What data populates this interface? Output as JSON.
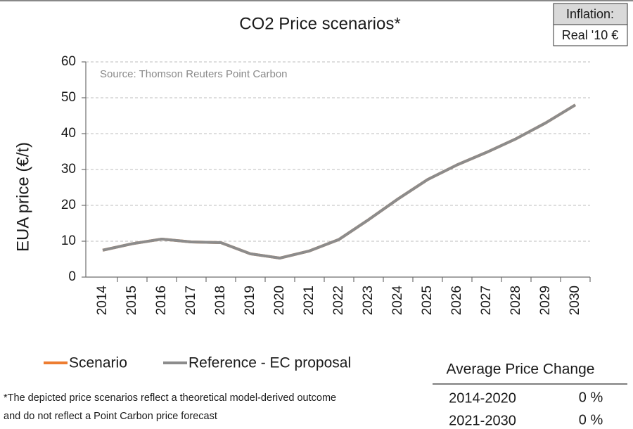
{
  "chart_data": {
    "type": "line",
    "title": "CO2 Price scenarios*",
    "annotation": "Source: Thomson Reuters Point Carbon",
    "y_label": "EUA price (€/t)",
    "categories": [
      "2014",
      "2015",
      "2016",
      "2017",
      "2018",
      "2019",
      "2020",
      "2021",
      "2022",
      "2023",
      "2024",
      "2025",
      "2026",
      "2027",
      "2028",
      "2029",
      "2030"
    ],
    "series": [
      {
        "name": "Scenario",
        "color": "#ed7d31",
        "values": [
          7.5,
          9.3,
          10.6,
          9.8,
          9.6,
          6.5,
          5.3,
          7.3,
          10.5,
          16,
          21.8,
          27.2,
          31.3,
          34.8,
          38.6,
          43,
          48
        ]
      },
      {
        "name": "Reference - EC proposal",
        "color": "#8c8c8c",
        "values": [
          7.5,
          9.3,
          10.6,
          9.8,
          9.6,
          6.5,
          5.3,
          7.3,
          10.5,
          16,
          21.8,
          27.2,
          31.3,
          34.8,
          38.6,
          43,
          48
        ]
      }
    ],
    "ylim": [
      0,
      60
    ],
    "yticks": [
      0,
      10,
      20,
      30,
      40,
      50,
      60
    ],
    "grid": true
  },
  "inflation": {
    "label": "Inflation:",
    "value": "Real '10 €"
  },
  "table": {
    "title": "Average Price Change",
    "rows": [
      [
        "2014-2020",
        "0 %"
      ],
      [
        "2021-2030",
        "0 %"
      ]
    ]
  },
  "footnote": [
    "*The depicted price scenarios reflect a theoretical model-derived outcome",
    "and do not reflect a Point Carbon price forecast"
  ]
}
